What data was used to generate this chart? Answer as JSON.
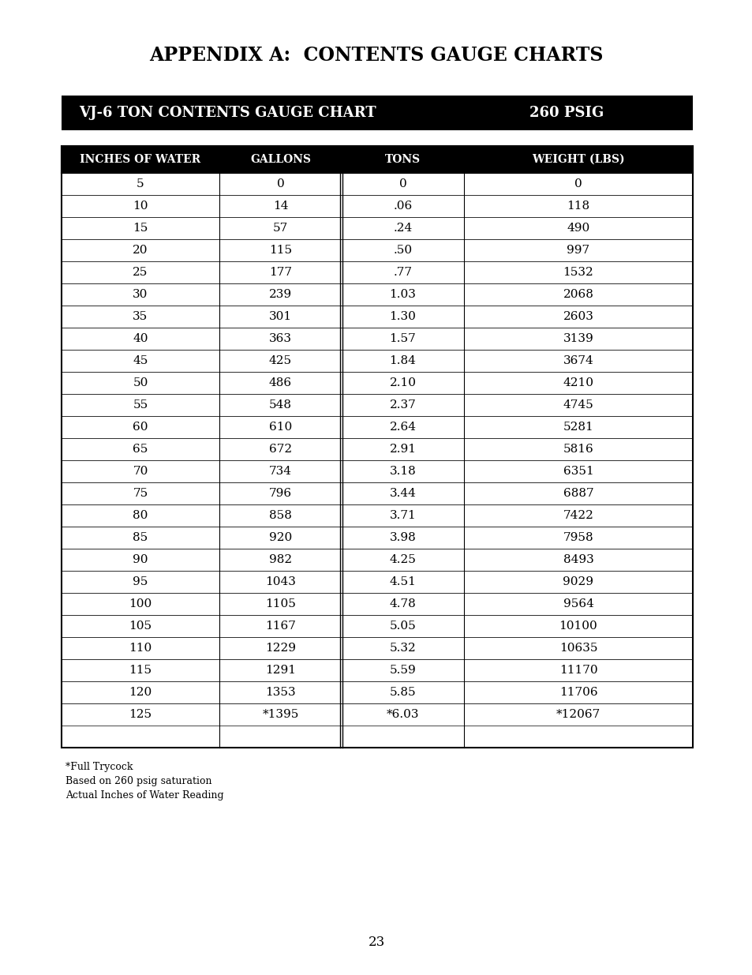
{
  "title": "APPENDIX A:  CONTENTS GAUGE CHARTS",
  "banner_left": "VJ-6 TON CONTENTS GAUGE CHART",
  "banner_right": "260 PSIG",
  "col_headers": [
    "INCHES OF WATER",
    "GALLONS",
    "TONS",
    "WEIGHT (LBS)"
  ],
  "rows": [
    [
      "5",
      "0",
      "0",
      "0"
    ],
    [
      "10",
      "14",
      ".06",
      "118"
    ],
    [
      "15",
      "57",
      ".24",
      "490"
    ],
    [
      "20",
      "115",
      ".50",
      "997"
    ],
    [
      "25",
      "177",
      ".77",
      "1532"
    ],
    [
      "30",
      "239",
      "1.03",
      "2068"
    ],
    [
      "35",
      "301",
      "1.30",
      "2603"
    ],
    [
      "40",
      "363",
      "1.57",
      "3139"
    ],
    [
      "45",
      "425",
      "1.84",
      "3674"
    ],
    [
      "50",
      "486",
      "2.10",
      "4210"
    ],
    [
      "55",
      "548",
      "2.37",
      "4745"
    ],
    [
      "60",
      "610",
      "2.64",
      "5281"
    ],
    [
      "65",
      "672",
      "2.91",
      "5816"
    ],
    [
      "70",
      "734",
      "3.18",
      "6351"
    ],
    [
      "75",
      "796",
      "3.44",
      "6887"
    ],
    [
      "80",
      "858",
      "3.71",
      "7422"
    ],
    [
      "85",
      "920",
      "3.98",
      "7958"
    ],
    [
      "90",
      "982",
      "4.25",
      "8493"
    ],
    [
      "95",
      "1043",
      "4.51",
      "9029"
    ],
    [
      "100",
      "1105",
      "4.78",
      "9564"
    ],
    [
      "105",
      "1167",
      "5.05",
      "10100"
    ],
    [
      "110",
      "1229",
      "5.32",
      "10635"
    ],
    [
      "115",
      "1291",
      "5.59",
      "11170"
    ],
    [
      "120",
      "1353",
      "5.85",
      "11706"
    ],
    [
      "125",
      "*1395",
      "*6.03",
      "*12067"
    ]
  ],
  "footnotes": [
    "*Full Trycock",
    "Based on 260 psig saturation",
    "Actual Inches of Water Reading"
  ],
  "page_number": "23",
  "banner_bg": "#000000",
  "banner_fg": "#ffffff",
  "header_bg": "#000000",
  "header_fg": "#ffffff",
  "table_bg": "#ffffff",
  "table_fg": "#000000",
  "border_color": "#000000",
  "title_fontsize": 17,
  "banner_fontsize": 13,
  "header_fontsize": 10,
  "data_fontsize": 11,
  "footnote_fontsize": 9,
  "page_fontsize": 12
}
